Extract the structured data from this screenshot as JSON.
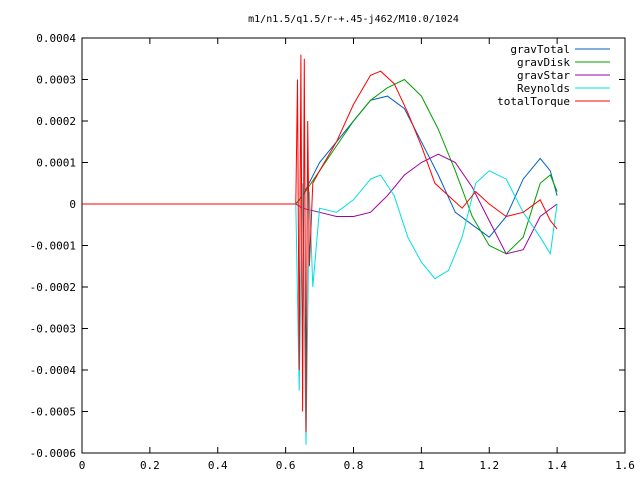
{
  "chart_data": {
    "type": "line",
    "title": "m1/n1.5/q1.5/r-+.45-j462/M10.0/1024",
    "xlabel": "",
    "ylabel": "",
    "xlim": [
      0,
      1.6
    ],
    "ylim": [
      -0.0006,
      0.0004
    ],
    "x_ticks": [
      "0",
      "0.2",
      "0.4",
      "0.6",
      "0.8",
      "1",
      "1.2",
      "1.4",
      "1.6"
    ],
    "y_ticks": [
      "0.0004",
      "0.0003",
      "0.0002",
      "0.0001",
      "0",
      "-0.0001",
      "-0.0002",
      "-0.0003",
      "-0.0004",
      "-0.0005",
      "-0.0006"
    ],
    "grid": false,
    "legend_position": "top-right",
    "series": [
      {
        "name": "gravTotal",
        "color": "#0060c0",
        "x": [
          0,
          0.63,
          0.65,
          0.7,
          0.75,
          0.8,
          0.85,
          0.9,
          0.95,
          1.0,
          1.05,
          1.1,
          1.15,
          1.2,
          1.25,
          1.3,
          1.35,
          1.38,
          1.4
        ],
        "y": [
          0,
          0,
          2e-05,
          0.0001,
          0.00015,
          0.0002,
          0.00025,
          0.00026,
          0.00023,
          0.00015,
          7e-05,
          -2e-05,
          -5e-05,
          -8e-05,
          -3e-05,
          6e-05,
          0.00011,
          8e-05,
          2e-05
        ]
      },
      {
        "name": "gravDisk",
        "color": "#00a000",
        "x": [
          0,
          0.63,
          0.65,
          0.7,
          0.75,
          0.8,
          0.85,
          0.9,
          0.95,
          1.0,
          1.05,
          1.1,
          1.15,
          1.2,
          1.25,
          1.3,
          1.35,
          1.38,
          1.4
        ],
        "y": [
          0,
          0,
          2e-05,
          8e-05,
          0.00014,
          0.0002,
          0.00025,
          0.00028,
          0.0003,
          0.00026,
          0.00018,
          8e-05,
          -3e-05,
          -0.0001,
          -0.00012,
          -8e-05,
          5e-05,
          7e-05,
          3e-05
        ]
      },
      {
        "name": "gravStar",
        "color": "#a000a0",
        "x": [
          0,
          0.63,
          0.65,
          0.7,
          0.75,
          0.8,
          0.85,
          0.9,
          0.95,
          1.0,
          1.05,
          1.1,
          1.15,
          1.2,
          1.25,
          1.3,
          1.35,
          1.4
        ],
        "y": [
          0,
          0,
          -1e-05,
          -2e-05,
          -3e-05,
          -3e-05,
          -2e-05,
          2e-05,
          7e-05,
          0.0001,
          0.00012,
          0.0001,
          4e-05,
          -4e-05,
          -0.00012,
          -0.00011,
          -3e-05,
          0
        ]
      },
      {
        "name": "Reynolds",
        "color": "#00e0e0",
        "x": [
          0,
          0.63,
          0.64,
          0.65,
          0.66,
          0.67,
          0.68,
          0.7,
          0.75,
          0.8,
          0.85,
          0.88,
          0.92,
          0.96,
          1.0,
          1.04,
          1.08,
          1.12,
          1.16,
          1.2,
          1.25,
          1.3,
          1.35,
          1.38,
          1.4
        ],
        "y": [
          0,
          0,
          -0.00045,
          5e-05,
          -0.00058,
          3e-05,
          -0.0002,
          -1e-05,
          -2e-05,
          1e-05,
          6e-05,
          7e-05,
          2e-05,
          -8e-05,
          -0.00014,
          -0.00018,
          -0.00016,
          -8e-05,
          5e-05,
          8e-05,
          6e-05,
          -2e-05,
          -8e-05,
          -0.00012,
          0
        ]
      },
      {
        "name": "totalTorque",
        "color": "#ff0000",
        "x": [
          0,
          0.63,
          0.635,
          0.64,
          0.645,
          0.65,
          0.655,
          0.66,
          0.665,
          0.67,
          0.68,
          0.7,
          0.75,
          0.8,
          0.85,
          0.88,
          0.92,
          0.96,
          1.0,
          1.04,
          1.08,
          1.12,
          1.16,
          1.2,
          1.25,
          1.3,
          1.35,
          1.38,
          1.4
        ],
        "y": [
          0,
          0,
          0.0003,
          -0.0004,
          0.00036,
          -0.0005,
          0.00035,
          -0.00055,
          0.0002,
          -0.00015,
          5e-05,
          8e-05,
          0.00015,
          0.00024,
          0.00031,
          0.00032,
          0.00029,
          0.00022,
          0.00014,
          5e-05,
          2e-05,
          -1e-05,
          3e-05,
          0.0,
          -3e-05,
          -2e-05,
          1e-05,
          -4e-05,
          -6e-05
        ]
      }
    ]
  }
}
